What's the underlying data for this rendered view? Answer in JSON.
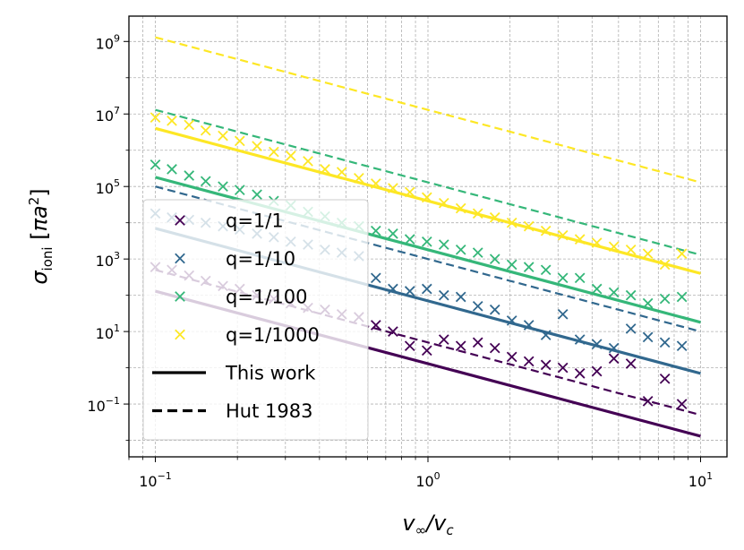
{
  "chart_data": {
    "type": "line",
    "xlabel": "v_∞/v_c",
    "ylabel": "σ_ioni [πa²]",
    "xscale": "log",
    "yscale": "log",
    "xlim": [
      0.08,
      12.5
    ],
    "ylim": [
      0.0035,
      5000000000.0
    ],
    "grid": true,
    "legend_position": "lower-left",
    "xticks": [
      {
        "value": 0.1,
        "base": "10",
        "exp": "−1"
      },
      {
        "value": 1,
        "base": "10",
        "exp": "0"
      },
      {
        "value": 10,
        "base": "10",
        "exp": "1"
      }
    ],
    "yticks": [
      {
        "value": 0.1,
        "base": "10",
        "exp": "−1"
      },
      {
        "value": 10,
        "base": "10",
        "exp": "1"
      },
      {
        "value": 1000,
        "base": "10",
        "exp": "3"
      },
      {
        "value": 100000,
        "base": "10",
        "exp": "5"
      },
      {
        "value": 10000000,
        "base": "10",
        "exp": "7"
      },
      {
        "value": 1000000000,
        "base": "10",
        "exp": "9"
      }
    ],
    "series": [
      {
        "name": "q=1/1",
        "color": "#440154",
        "this_work": {
          "x": [
            0.1,
            10
          ],
          "y": [
            130,
            0.013
          ]
        },
        "hut_1983": {
          "x": [
            0.1,
            10
          ],
          "y": [
            500,
            0.05
          ]
        },
        "simulation": {
          "x": [
            0.1,
            0.115,
            0.133,
            0.153,
            0.177,
            0.204,
            0.236,
            0.272,
            0.314,
            0.363,
            0.419,
            0.483,
            0.558,
            0.644,
            0.744,
            0.858,
            0.991,
            1.144,
            1.32,
            1.524,
            1.76,
            2.031,
            2.345,
            2.707,
            3.125,
            3.608,
            4.165,
            4.808,
            5.551,
            6.408,
            7.398,
            8.541
          ],
          "y": [
            600,
            500,
            350,
            250,
            180,
            150,
            100,
            80,
            60,
            45,
            40,
            30,
            25,
            15,
            10,
            4,
            3,
            6,
            4,
            5,
            3.5,
            2,
            1.5,
            1.2,
            1,
            0.7,
            0.8,
            1.8,
            1.3,
            0.12,
            0.5,
            0.1
          ]
        }
      },
      {
        "name": "q=1/10",
        "color": "#31688e",
        "this_work": {
          "x": [
            0.1,
            10
          ],
          "y": [
            7000,
            0.7
          ]
        },
        "hut_1983": {
          "x": [
            0.1,
            10
          ],
          "y": [
            100000,
            10
          ]
        },
        "simulation": {
          "x": [
            0.1,
            0.115,
            0.133,
            0.153,
            0.177,
            0.204,
            0.236,
            0.272,
            0.314,
            0.363,
            0.419,
            0.483,
            0.558,
            0.644,
            0.744,
            0.858,
            0.991,
            1.144,
            1.32,
            1.524,
            1.76,
            2.031,
            2.345,
            2.707,
            3.125,
            3.608,
            4.165,
            4.808,
            5.551,
            6.408,
            7.398,
            8.541
          ],
          "y": [
            18000,
            14000,
            12000,
            10000,
            8000,
            6500,
            5000,
            4000,
            3000,
            2500,
            1800,
            1500,
            1200,
            300,
            150,
            130,
            150,
            100,
            90,
            50,
            40,
            20,
            15,
            8,
            30,
            6,
            4.5,
            3.5,
            12,
            7,
            5,
            4
          ]
        }
      },
      {
        "name": "q=1/100",
        "color": "#35b779",
        "this_work": {
          "x": [
            0.1,
            10
          ],
          "y": [
            180000,
            18
          ]
        },
        "hut_1983": {
          "x": [
            0.1,
            10
          ],
          "y": [
            13000000,
            1300
          ]
        },
        "simulation": {
          "x": [
            0.1,
            0.115,
            0.133,
            0.153,
            0.177,
            0.204,
            0.236,
            0.272,
            0.314,
            0.363,
            0.419,
            0.483,
            0.558,
            0.644,
            0.744,
            0.858,
            0.991,
            1.144,
            1.32,
            1.524,
            1.76,
            2.031,
            2.345,
            2.707,
            3.125,
            3.608,
            4.165,
            4.808,
            5.551,
            6.408,
            7.398,
            8.541
          ],
          "y": [
            400000,
            300000,
            200000,
            140000,
            100000,
            80000,
            60000,
            40000,
            30000,
            20000,
            15000,
            10000,
            8000,
            6000,
            5000,
            3500,
            3000,
            2500,
            1800,
            1500,
            1000,
            700,
            600,
            500,
            300,
            300,
            150,
            120,
            100,
            60,
            80,
            90
          ]
        }
      },
      {
        "name": "q=1/1000",
        "color": "#fde725",
        "this_work": {
          "x": [
            0.1,
            10
          ],
          "y": [
            4000000,
            400
          ]
        },
        "hut_1983": {
          "x": [
            0.1,
            10
          ],
          "y": [
            1300000000,
            130000
          ]
        },
        "simulation": {
          "x": [
            0.1,
            0.115,
            0.133,
            0.153,
            0.177,
            0.204,
            0.236,
            0.272,
            0.314,
            0.363,
            0.419,
            0.483,
            0.558,
            0.644,
            0.744,
            0.858,
            0.991,
            1.144,
            1.32,
            1.524,
            1.76,
            2.031,
            2.345,
            2.707,
            3.125,
            3.608,
            4.165,
            4.808,
            5.551,
            6.408,
            7.398,
            8.541
          ],
          "y": [
            8000000,
            6500000,
            5000000,
            3500000,
            2500000,
            1800000,
            1300000,
            900000,
            700000,
            500000,
            300000,
            250000,
            170000,
            120000,
            90000,
            70000,
            50000,
            35000,
            25000,
            18000,
            14000,
            10000,
            8000,
            6000,
            4500,
            3500,
            2800,
            2200,
            1800,
            1400,
            700,
            1400
          ]
        }
      }
    ],
    "legend": [
      {
        "label": "q=1/1",
        "kind": "marker",
        "color": "#440154"
      },
      {
        "label": "q=1/10",
        "kind": "marker",
        "color": "#31688e"
      },
      {
        "label": "q=1/100",
        "kind": "marker",
        "color": "#35b779"
      },
      {
        "label": "q=1/1000",
        "kind": "marker",
        "color": "#fde725"
      },
      {
        "label": "This work",
        "kind": "solid",
        "color": "#000000"
      },
      {
        "label": "Hut 1983",
        "kind": "dashed",
        "color": "#000000"
      }
    ]
  }
}
